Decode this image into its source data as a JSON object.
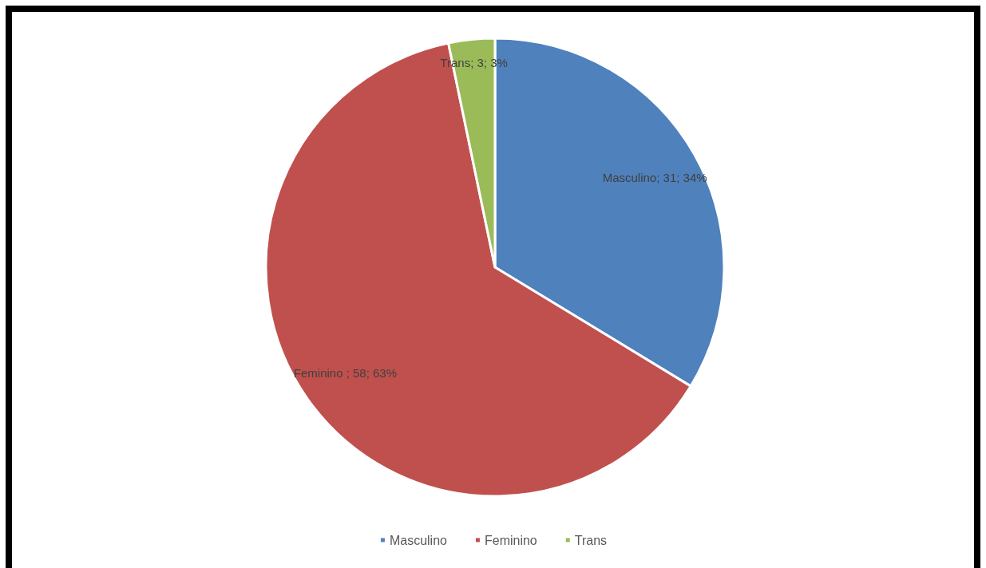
{
  "chart_data": {
    "type": "pie",
    "categories": [
      "Masculino",
      "Feminino",
      "Trans"
    ],
    "values": [
      31,
      58,
      3
    ],
    "colors": [
      "#4f81bd",
      "#c0504d",
      "#9bbb59"
    ],
    "value_labels": [
      "Masculino; 31; 34%",
      "Feminino ; 58; 63%",
      "Trans; 3; 3%"
    ],
    "legend": "bottom"
  }
}
